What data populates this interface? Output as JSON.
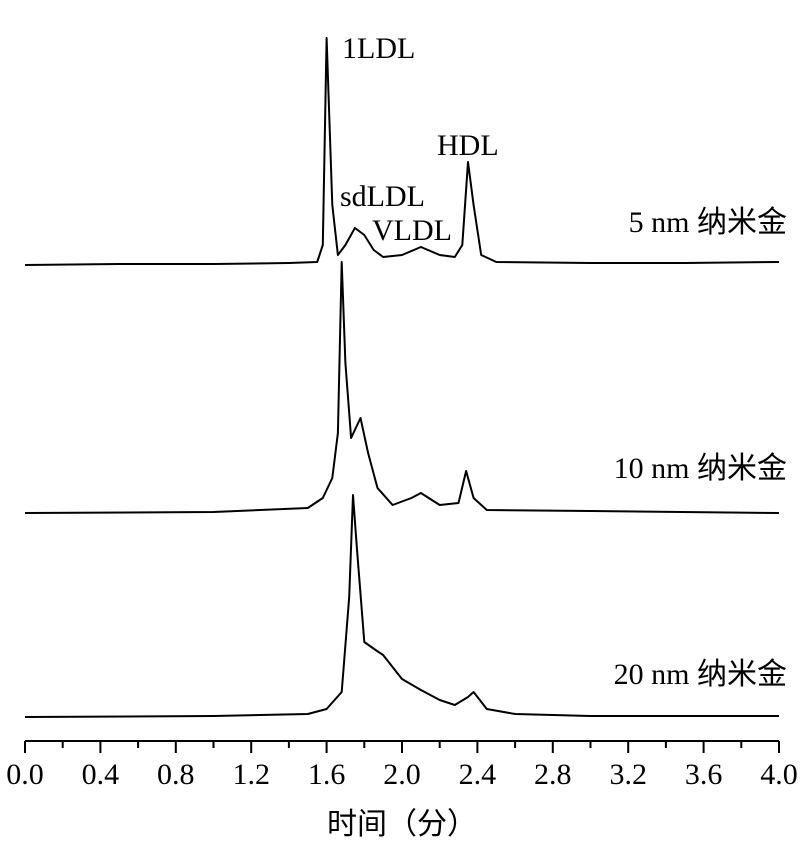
{
  "chart_data": {
    "type": "line",
    "xlabel": "时间（分）",
    "xlim": [
      0,
      4
    ],
    "xticks": [
      {
        "value": 0,
        "label": "0.0"
      },
      0.4,
      0.8,
      1.2,
      1.6,
      {
        "value": 2,
        "label": "2.0"
      },
      2.4,
      2.8,
      3.2,
      3.6,
      {
        "value": 4,
        "label": "4.0"
      }
    ],
    "xminorticks": [
      0.2,
      0.6,
      1,
      1.4,
      1.8,
      2.2,
      2.6,
      3,
      3.4,
      3.8
    ],
    "ylim": [
      0,
      260
    ],
    "color": "#000000",
    "annotations": [
      "1LDL",
      "sdLDL",
      "VLDL",
      "HDL"
    ],
    "series": [
      {
        "name": "5 nm 纳米金",
        "x": [
          0,
          0.5,
          1.0,
          1.4,
          1.55,
          1.58,
          1.6,
          1.63,
          1.66,
          1.7,
          1.75,
          1.8,
          1.85,
          1.9,
          2.0,
          2.1,
          2.2,
          2.28,
          2.32,
          2.35,
          2.38,
          2.42,
          2.5,
          3.0,
          3.5,
          4.0
        ],
        "values": [
          0,
          1,
          1,
          2,
          3,
          20,
          227,
          60,
          10,
          20,
          37,
          30,
          15,
          8,
          10,
          18,
          10,
          8,
          20,
          103,
          60,
          10,
          3,
          2,
          2,
          3
        ]
      },
      {
        "name": "10 nm 纳米金",
        "x": [
          0,
          1.0,
          1.5,
          1.58,
          1.63,
          1.66,
          1.68,
          1.7,
          1.73,
          1.78,
          1.82,
          1.87,
          1.95,
          2.05,
          2.1,
          2.2,
          2.3,
          2.34,
          2.38,
          2.45,
          3.0,
          4.0
        ],
        "values": [
          0,
          1,
          5,
          15,
          35,
          80,
          251,
          150,
          75,
          95,
          60,
          25,
          8,
          15,
          20,
          8,
          10,
          42,
          15,
          3,
          2,
          0
        ]
      },
      {
        "name": "20 nm 纳米金",
        "x": [
          0,
          1.0,
          1.5,
          1.6,
          1.68,
          1.72,
          1.74,
          1.76,
          1.8,
          1.86,
          1.9,
          2.0,
          2.1,
          2.2,
          2.28,
          2.35,
          2.38,
          2.45,
          2.6,
          3.0,
          4.0
        ],
        "values": [
          0,
          1,
          3,
          8,
          25,
          120,
          222,
          170,
          75,
          67,
          62,
          38,
          27,
          17,
          12,
          20,
          25,
          8,
          3,
          1,
          1
        ]
      }
    ]
  }
}
